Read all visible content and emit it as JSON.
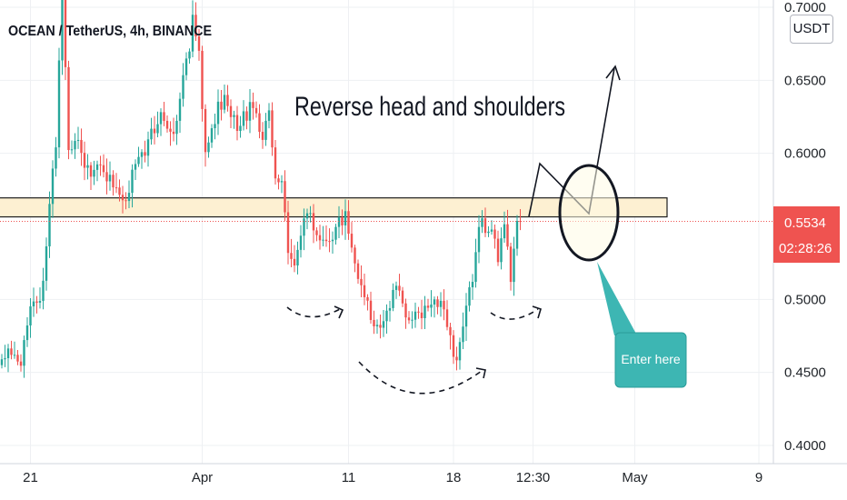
{
  "header": {
    "title": "OCEAN / TetherUS, 4h, BINANCE"
  },
  "unit_button": {
    "label": "USDT"
  },
  "annotations": {
    "headline": "Reverse head and shoulders",
    "callout": "Enter here",
    "resistance_zone": [
      0.5565,
      0.5695
    ]
  },
  "price_badge": {
    "price": "0.5534",
    "countdown": "02:28:26",
    "value": 0.5534
  },
  "colors": {
    "up": "#26a69a",
    "down": "#ef5350",
    "zone_fill": "#fdf0d2",
    "zone_stroke": "#1e1e1e",
    "callout": "#3db6b3",
    "price_line": "#ef5350",
    "circle_fill": "#fffbe6"
  },
  "chart_data": {
    "type": "candlestick",
    "title": "OCEAN / TetherUS, 4h, BINANCE",
    "interval": "4h",
    "y_axis": {
      "min": 0.4,
      "max": 0.7,
      "ticks": [
        {
          "value": 0.7,
          "label": "0.7000"
        },
        {
          "value": 0.65,
          "label": "0.6500"
        },
        {
          "value": 0.6,
          "label": "0.6000"
        },
        {
          "value": 0.5,
          "label": "0.5000"
        },
        {
          "value": 0.45,
          "label": "0.4500"
        },
        {
          "value": 0.4,
          "label": "0.4000"
        }
      ]
    },
    "x_axis": {
      "ticks": [
        {
          "label": "21",
          "index": 9
        },
        {
          "label": "Apr",
          "index": 63
        },
        {
          "label": "11",
          "index": 109
        },
        {
          "label": "18",
          "index": 142
        },
        {
          "label": "12:30",
          "index": 167
        },
        {
          "label": "May",
          "index": 199
        },
        {
          "label": "9",
          "index": 238
        }
      ]
    },
    "current_price": 0.5534,
    "segments": [
      [
        0,
        0.465
      ],
      [
        6,
        0.46
      ],
      [
        10,
        0.5
      ],
      [
        12,
        0.495
      ],
      [
        15,
        0.565
      ],
      [
        17,
        0.61
      ],
      [
        19,
        0.72
      ],
      [
        21,
        0.6
      ],
      [
        24,
        0.605
      ],
      [
        28,
        0.585
      ],
      [
        32,
        0.59
      ],
      [
        36,
        0.575
      ],
      [
        38,
        0.562
      ],
      [
        42,
        0.59
      ],
      [
        46,
        0.608
      ],
      [
        50,
        0.625
      ],
      [
        54,
        0.615
      ],
      [
        58,
        0.66
      ],
      [
        60,
        0.69
      ],
      [
        62,
        0.67
      ],
      [
        64,
        0.595
      ],
      [
        66,
        0.62
      ],
      [
        70,
        0.64
      ],
      [
        74,
        0.615
      ],
      [
        78,
        0.632
      ],
      [
        82,
        0.615
      ],
      [
        84,
        0.625
      ],
      [
        86,
        0.58
      ],
      [
        88,
        0.575
      ],
      [
        90,
        0.535
      ],
      [
        92,
        0.525
      ],
      [
        96,
        0.56
      ],
      [
        100,
        0.54
      ],
      [
        104,
        0.545
      ],
      [
        108,
        0.56
      ],
      [
        110,
        0.53
      ],
      [
        113,
        0.505
      ],
      [
        116,
        0.49
      ],
      [
        118,
        0.48
      ],
      [
        122,
        0.5
      ],
      [
        124,
        0.515
      ],
      [
        126,
        0.492
      ],
      [
        130,
        0.487
      ],
      [
        136,
        0.5
      ],
      [
        138,
        0.498
      ],
      [
        140,
        0.48
      ],
      [
        142,
        0.46
      ],
      [
        144,
        0.465
      ],
      [
        146,
        0.5
      ],
      [
        148,
        0.515
      ],
      [
        150,
        0.55
      ],
      [
        154,
        0.55
      ],
      [
        156,
        0.53
      ],
      [
        158,
        0.55
      ],
      [
        160,
        0.515
      ],
      [
        162,
        0.555
      ],
      [
        163,
        0.5534
      ]
    ]
  }
}
